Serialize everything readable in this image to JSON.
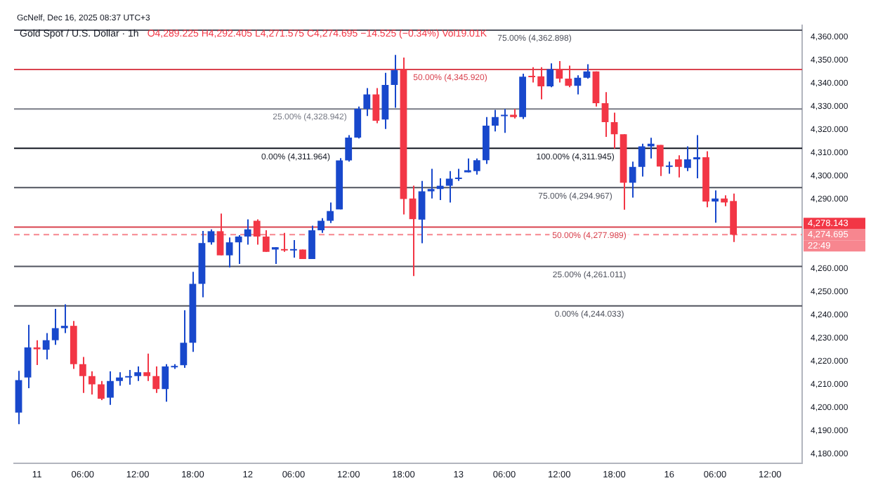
{
  "chart_data": {
    "type": "candlestick",
    "title": "Gold Spot / U.S. Dollar · 1h",
    "subtitle": "O4,289.225 H4,292.405 L4,271.575 C4,274.695 −14.525 (−0.34%) Vol19.01K",
    "annotations": [
      "GcNelf, Dec 16, 2025 08:37 UTC+3",
      {
        "text": "100.00% (4,311.945)",
        "y": 4311.945
      },
      "4,278.143",
      "22:49"
    ],
    "categories": [
      null,
      null,
      "11",
      null,
      null,
      null,
      null,
      "06:00",
      null,
      null,
      null,
      null,
      null,
      "12:00",
      null,
      null,
      null,
      null,
      null,
      "18:00",
      null,
      null,
      null,
      null,
      null,
      "12",
      null,
      null,
      null,
      null,
      "06:00",
      null,
      null,
      null,
      null,
      null,
      "12:00",
      null,
      null,
      null,
      null,
      null,
      "18:00",
      null,
      null,
      null,
      null,
      null,
      "13",
      null,
      null,
      null,
      null,
      "06:00",
      null,
      null,
      null,
      null,
      null,
      "12:00",
      null,
      null,
      null,
      null,
      null,
      "18:00",
      null,
      null,
      null,
      null,
      null,
      "16",
      null,
      null,
      null,
      null,
      "06:00",
      null,
      null,
      null,
      null,
      null,
      "12:00",
      null,
      null,
      null
    ],
    "ohlc": [
      [
        4198,
        4216,
        4193,
        4212
      ],
      [
        4213.1,
        4235.8,
        4208.5,
        4226.1
      ],
      [
        4226.1,
        4229.2,
        4218.5,
        4225.3
      ],
      [
        4225.1,
        4232.3,
        4220.9,
        4229.2
      ],
      [
        4229.2,
        4242.7,
        4227.2,
        4234.4
      ],
      [
        4234.4,
        4244.7,
        4232.3,
        4235.4
      ],
      [
        4235.4,
        4237.5,
        4216.8,
        4218.9
      ],
      [
        4218.9,
        4222.0,
        4206.5,
        4213.7
      ],
      [
        4213.7,
        4215.8,
        4205.8,
        4210.2
      ],
      [
        4210.2,
        4211.6,
        4203.4,
        4204.0
      ],
      [
        4204.4,
        4215.8,
        4201.3,
        4211.6
      ],
      [
        4211.6,
        4215.4,
        4209.6,
        4213.1
      ],
      [
        4213.1,
        4216.4,
        4210.0,
        4213.7
      ],
      [
        4213.7,
        4217.9,
        4211.6,
        4215.4
      ],
      [
        4215.4,
        4223.4,
        4211.6,
        4213.7
      ],
      [
        4213.7,
        4217.9,
        4206.5,
        4208.1
      ],
      [
        4208.1,
        4218.9,
        4202.7,
        4217.9
      ],
      [
        4217.5,
        4218.9,
        4216.8,
        4217.9
      ],
      [
        4218.4,
        4242.1,
        4217.3,
        4228.1
      ],
      [
        4228.1,
        4258.7,
        4224.2,
        4253.5
      ],
      [
        4253.5,
        4276.3,
        4247.7,
        4271.1
      ],
      [
        4271.4,
        4277.0,
        4270.4,
        4276.2
      ],
      [
        4276.2,
        4283.8,
        4265.8,
        4265.8
      ],
      [
        4265.8,
        4273.5,
        4260.6,
        4271.4
      ],
      [
        4271.4,
        4274.5,
        4262.1,
        4273.9
      ],
      [
        4273.9,
        4281.3,
        4270.4,
        4277.0
      ],
      [
        4280.7,
        4281.3,
        4270.4,
        4273.9
      ],
      [
        4273.9,
        4276.6,
        4267.3,
        4267.3
      ],
      [
        4268.3,
        4269.3,
        4262.1,
        4269.3
      ],
      [
        4268.5,
        4275.5,
        4267.3,
        4267.9
      ],
      [
        4267.9,
        4272.4,
        4264.8,
        4268.5
      ],
      [
        4268.3,
        4268.3,
        4264.2,
        4264.2
      ],
      [
        4264.2,
        4278.6,
        4264.2,
        4276.6
      ],
      [
        4276.6,
        4281.8,
        4275.5,
        4280.7
      ],
      [
        4280.7,
        4288.6,
        4279.7,
        4284.9
      ],
      [
        4285.6,
        4307.7,
        4285.6,
        4306.7
      ],
      [
        4306.7,
        4317.6,
        4306.2,
        4316.6
      ],
      [
        4316.6,
        4330.0,
        4316.2,
        4329.0
      ],
      [
        4329.0,
        4337.9,
        4325.9,
        4335.2
      ],
      [
        4335.2,
        4337.9,
        4322.8,
        4323.8
      ],
      [
        4324.4,
        4344.5,
        4320.3,
        4339.3
      ],
      [
        4339.3,
        4352.2,
        4329.4,
        4345.6
      ],
      [
        4346.1,
        4351.1,
        4283.4,
        4290.1
      ],
      [
        4290.3,
        4295.8,
        4256.9,
        4281.4
      ],
      [
        4281.2,
        4297.9,
        4271.0,
        4293.4
      ],
      [
        4293.4,
        4303.1,
        4290.3,
        4294.4
      ],
      [
        4294.4,
        4299.0,
        4289.6,
        4295.8
      ],
      [
        4295.8,
        4302.1,
        4288.6,
        4298.9
      ],
      [
        4298.7,
        4303.1,
        4297.9,
        4299.2
      ],
      [
        4301.6,
        4307.6,
        4301.6,
        4302.5
      ],
      [
        4302.1,
        4307.6,
        4300.6,
        4306.8
      ],
      [
        4306.8,
        4325.4,
        4305.2,
        4321.7
      ],
      [
        4321.7,
        4328.5,
        4319.2,
        4325.4
      ],
      [
        4325.8,
        4328.9,
        4318.6,
        4326.4
      ],
      [
        4326.4,
        4328.9,
        4324.8,
        4325.4
      ],
      [
        4325.4,
        4344.1,
        4324.6,
        4342.8
      ],
      [
        4343.0,
        4346.9,
        4340.3,
        4342.6
      ],
      [
        4343.0,
        4346.9,
        4333.1,
        4338.7
      ],
      [
        4338.7,
        4348.6,
        4338.3,
        4346.1
      ],
      [
        4346.1,
        4349.6,
        4340.3,
        4342.0
      ],
      [
        4342.0,
        4347.6,
        4338.3,
        4338.9
      ],
      [
        4338.9,
        4343.4,
        4335.2,
        4342.4
      ],
      [
        4342.4,
        4348.2,
        4342.0,
        4345.1
      ],
      [
        4345.1,
        4345.1,
        4330.0,
        4331.4
      ],
      [
        4331.4,
        4336.2,
        4316.9,
        4323.2
      ],
      [
        4323.2,
        4327.3,
        4311.8,
        4318.0
      ],
      [
        4318.0,
        4318.0,
        4285.5,
        4297.1
      ],
      [
        4297.1,
        4306.2,
        4290.7,
        4303.9
      ],
      [
        4303.9,
        4313.9,
        4299.8,
        4312.8
      ],
      [
        4312.8,
        4316.5,
        4307.6,
        4313.9
      ],
      [
        4313.4,
        4313.4,
        4300.0,
        4304.1
      ],
      [
        4303.9,
        4306.2,
        4301.0,
        4304.5
      ],
      [
        4307.2,
        4308.9,
        4299.4,
        4303.9
      ],
      [
        4303.5,
        4312.8,
        4302.1,
        4307.2
      ],
      [
        4307.2,
        4317.6,
        4299.0,
        4308.1
      ],
      [
        4308.1,
        4310.7,
        4286.5,
        4289.0
      ],
      [
        4289.0,
        4293.8,
        4279.9,
        4290.3
      ],
      [
        4290.3,
        4291.7,
        4287.0,
        4288.6
      ],
      [
        4289.225,
        4292.405,
        4271.575,
        4274.695
      ],
      null,
      null,
      null,
      null,
      null,
      null,
      null
    ],
    "colors": [
      "#1848cc",
      "#1848cc",
      "#f23645",
      "#1848cc",
      "#1848cc",
      "#1848cc",
      "#f23645",
      "#f23645",
      "#f23645",
      "#f23645",
      "#1848cc",
      "#1848cc",
      "#1848cc",
      "#1848cc",
      "#f23645",
      "#f23645",
      "#1848cc",
      "#1848cc",
      "#1848cc",
      "#1848cc",
      "#1848cc",
      "#1848cc",
      "#f23645",
      "#1848cc",
      "#1848cc",
      "#1848cc",
      "#f23645",
      "#f23645",
      "#1848cc",
      "#f23645",
      "#1848cc",
      "#f23645",
      "#1848cc",
      "#1848cc",
      "#1848cc",
      "#1848cc",
      "#1848cc",
      "#1848cc",
      "#1848cc",
      "#f23645",
      "#1848cc",
      "#1848cc",
      "#f23645",
      "#f23645",
      "#1848cc",
      "#1848cc",
      "#1848cc",
      "#1848cc",
      "#1848cc",
      "#1848cc",
      "#1848cc",
      "#1848cc",
      "#1848cc",
      "#1848cc",
      "#f23645",
      "#1848cc",
      "#f23645",
      "#f23645",
      "#1848cc",
      "#f23645",
      "#f23645",
      "#1848cc",
      "#1848cc",
      "#f23645",
      "#f23645",
      "#f23645",
      "#f23645",
      "#1848cc",
      "#1848cc",
      "#1848cc",
      "#f23645",
      "#1848cc",
      "#f23645",
      "#1848cc",
      "#1848cc",
      "#f23645",
      "#1848cc",
      "#f23645",
      "#f23645",
      null,
      null,
      null,
      null,
      null,
      null,
      null
    ],
    "ylim": [
      4176,
      4365
    ],
    "yticks": [
      {
        "value": 4180,
        "label": "4,180.000"
      },
      {
        "value": 4190,
        "label": "4,190.000"
      },
      {
        "value": 4200,
        "label": "4,200.000"
      },
      {
        "value": 4210,
        "label": "4,210.000"
      },
      {
        "value": 4220,
        "label": "4,220.000"
      },
      {
        "value": 4230,
        "label": "4,230.000"
      },
      {
        "value": 4240,
        "label": "4,240.000"
      },
      {
        "value": 4250,
        "label": "4,250.000"
      },
      {
        "value": 4260,
        "label": "4,260.000"
      },
      {
        "value": 4290,
        "label": "4,290.000"
      },
      {
        "value": 4300,
        "label": "4,300.000"
      },
      {
        "value": 4310,
        "label": "4,310.000"
      },
      {
        "value": 4320,
        "label": "4,320.000"
      },
      {
        "value": 4330,
        "label": "4,330.000"
      },
      {
        "value": 4340,
        "label": "4,340.000"
      },
      {
        "value": 4350,
        "label": "4,350.000"
      },
      {
        "value": 4360,
        "label": "4,360.000"
      }
    ],
    "ref_lines": [
      {
        "axis": "y",
        "value": 4362.898,
        "label": "75.00% (4,362.898)",
        "color": "#50535e",
        "line_style": "solid"
      },
      {
        "axis": "y",
        "value": 4345.92,
        "label": "50.00% (4,345.920)",
        "color": "#d9434f",
        "line_style": "solid"
      },
      {
        "axis": "y",
        "value": 4328.942,
        "label": "25.00% (4,328.942)",
        "color": "#787b86",
        "line_style": "solid"
      },
      {
        "axis": "y",
        "value": 4311.964,
        "label": "0.00% (4,311.964)",
        "color": "#131722",
        "line_style": "solid"
      },
      {
        "axis": "y",
        "value": 4294.967,
        "label": "75.00% (4,294.967)",
        "color": "#50535e",
        "line_style": "solid"
      },
      {
        "axis": "y",
        "value": 4277.989,
        "label": "50.00% (4,277.989)",
        "color": "#d9434f",
        "line_style": "solid"
      },
      {
        "axis": "y",
        "value": 4261.011,
        "label": "25.00% (4,261.011)",
        "color": "#50535e",
        "line_style": "solid"
      },
      {
        "axis": "y",
        "value": 4244.033,
        "label": "0.00% (4,244.033)",
        "color": "#50535e",
        "line_style": "solid"
      },
      {
        "axis": "y",
        "value": 4274.695,
        "label": "4,274.695",
        "color": "#f7868f",
        "line_style": "dashed"
      }
    ],
    "grid": false,
    "legend": false
  }
}
